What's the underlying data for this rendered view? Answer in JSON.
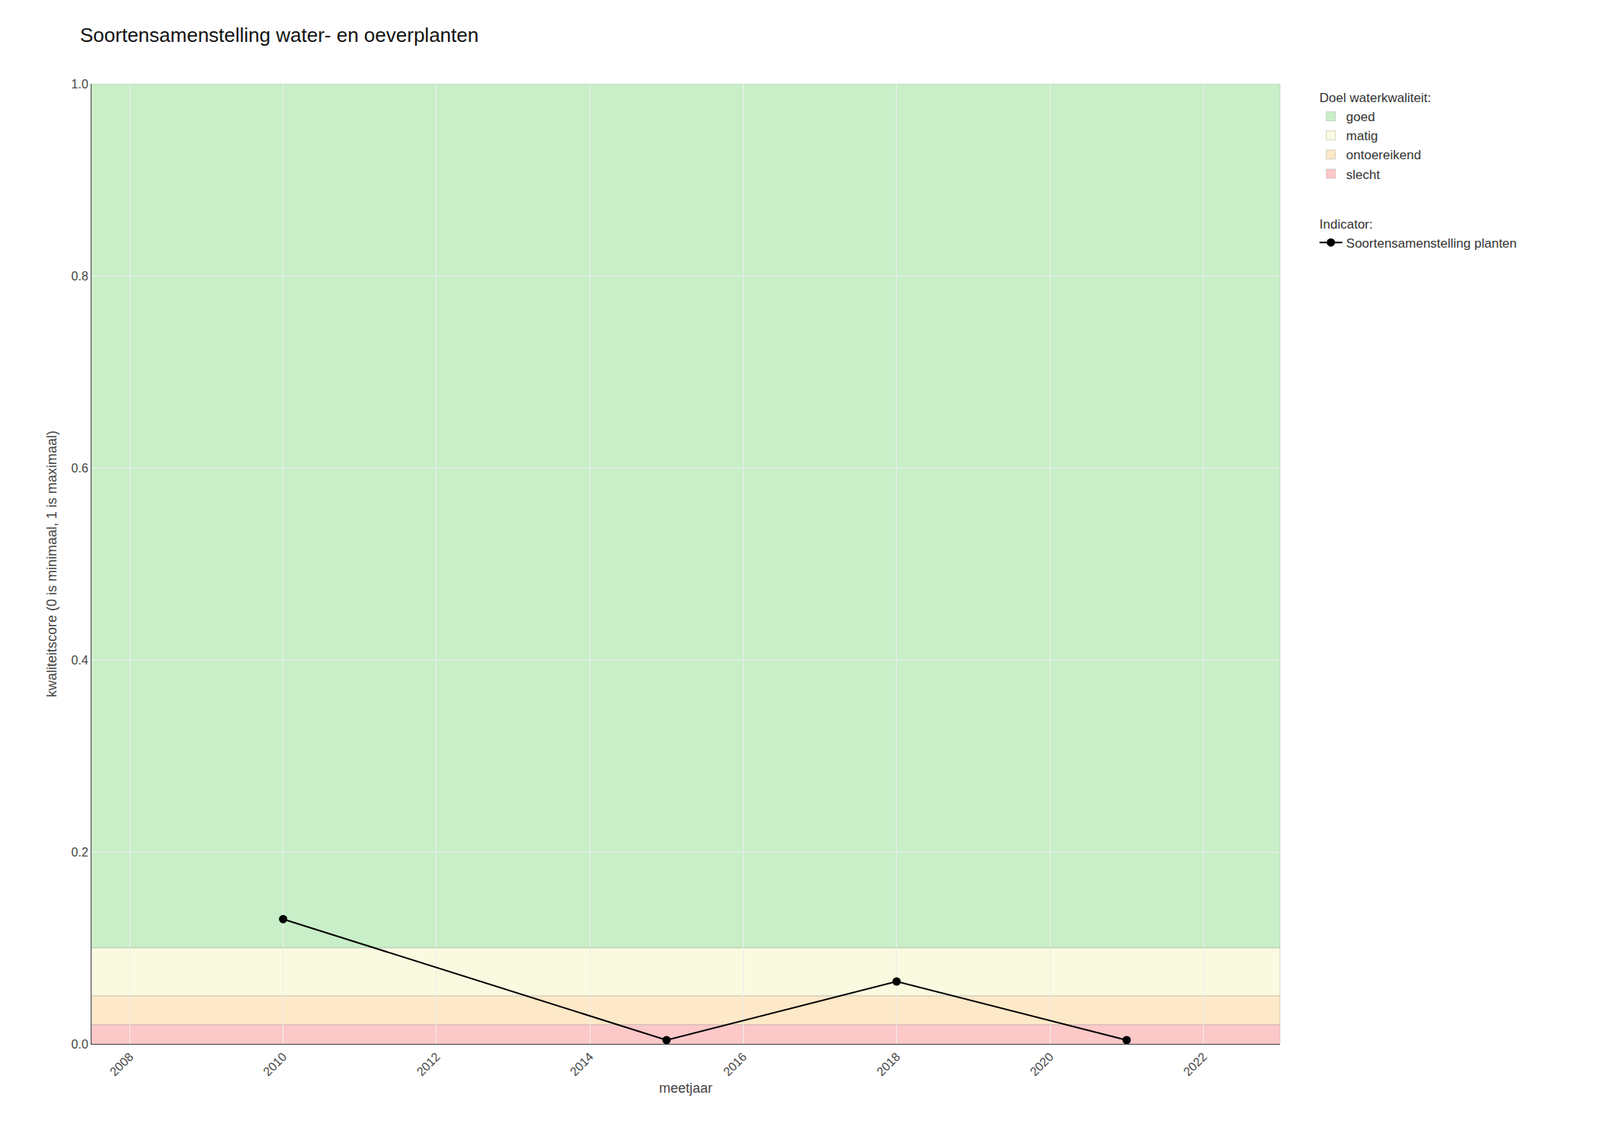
{
  "chart_data": {
    "type": "line",
    "title": "Soortensamenstelling water- en oeverplanten",
    "x_label": "meetjaar",
    "y_label": "kwaliteitscore (0 is minimaal, 1 is maximaal)",
    "x": [
      2010,
      2015,
      2018,
      2021
    ],
    "series": [
      {
        "name": "Soortensamenstelling planten",
        "color": "#000000",
        "marker": "circle",
        "line_style": "solid",
        "values": [
          0.13,
          0.004,
          0.065,
          0.004
        ]
      }
    ],
    "legend_title_series": "Indicator:",
    "legend_title_bands": "Doel waterkwaliteit:",
    "bands": [
      {
        "name": "goed",
        "color": "#c8efc8",
        "from": 0.1,
        "to": 1.0
      },
      {
        "name": "matig",
        "color": "#fafae0",
        "from": 0.05,
        "to": 0.1
      },
      {
        "name": "ontoereikend",
        "color": "#fde8c8",
        "from": 0.02,
        "to": 0.05
      },
      {
        "name": "slecht",
        "color": "#fcc8c8",
        "from": 0.0,
        "to": 0.02
      }
    ],
    "xlim": [
      2007.5,
      2023.0
    ],
    "ylim": [
      0.0,
      1.0
    ],
    "xticks": [
      2008,
      2010,
      2012,
      2014,
      2016,
      2018,
      2020,
      2022
    ],
    "yticks": [
      {
        "value": 0.0,
        "label": "0.0"
      },
      0.2,
      0.4,
      0.6,
      0.8,
      {
        "value": 1.0,
        "label": "1.0"
      }
    ],
    "grid": true,
    "legend": "right"
  }
}
